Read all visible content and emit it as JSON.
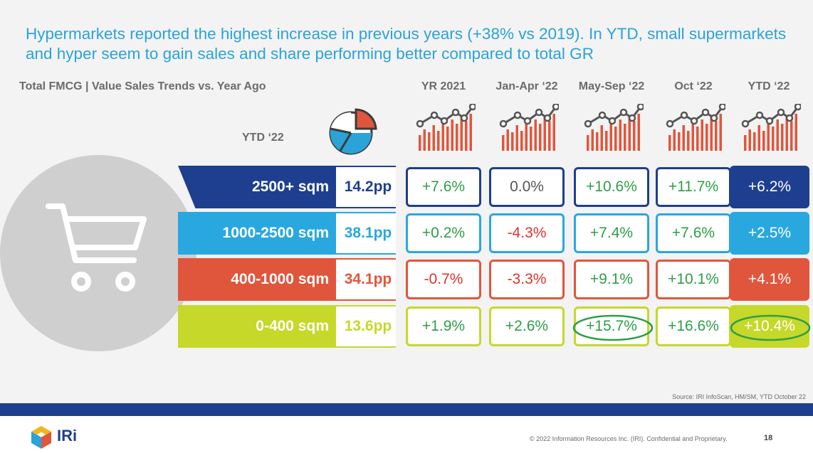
{
  "headline": "Hypermarkets reported the highest increase in previous years (+38% vs 2019). In YTD, small supermarkets and hyper seem to gain sales and share performing better compared to total GR",
  "subtitle": "Total FMCG | Value Sales Trends vs. Year Ago",
  "ytd_label": "YTD ‘22",
  "icons": {
    "share": "pie-chart-icon",
    "trend": "bar-trend-icon",
    "store": "shopping-cart-icon",
    "brand": "iri-cube-logo"
  },
  "colors": {
    "navy": "#1e3f8f",
    "sky": "#29a8e0",
    "orange": "#e0563c",
    "lime": "#c6d82a",
    "pos": "#2e9e48",
    "neg": "#e0332d"
  },
  "chart_data": {
    "type": "table",
    "title": "Total FMCG | Value Sales Trends vs. Year Ago",
    "columns": [
      "YR 2021",
      "Jan-Apr ‘22",
      "May-Sep ‘22",
      "Oct ‘22",
      "YTD ‘22"
    ],
    "rows": [
      {
        "segment": "2500+ sqm",
        "share_change": "14.2pp",
        "values": [
          "+7.6%",
          "0.0%",
          "+10.6%",
          "+11.7%",
          "+6.2%"
        ]
      },
      {
        "segment": "1000-2500 sqm",
        "share_change": "38.1pp",
        "values": [
          "+0.2%",
          "-4.3%",
          "+7.4%",
          "+7.6%",
          "+2.5%"
        ]
      },
      {
        "segment": "400-1000 sqm",
        "share_change": "34.1pp",
        "values": [
          "-0.7%",
          "-3.3%",
          "+9.1%",
          "+10.1%",
          "+4.1%"
        ]
      },
      {
        "segment": "0-400 sqm",
        "share_change": "13.6pp",
        "values": [
          "+1.9%",
          "+2.6%",
          "+15.7%",
          "+16.6%",
          "+10.4%"
        ]
      }
    ],
    "highlighted": [
      {
        "row": 3,
        "col": 2
      },
      {
        "row": 3,
        "col": 4
      }
    ]
  },
  "footer": {
    "source": "Source: IRI InfoScan, HM/SM, YTD October 22",
    "brand": "IRi",
    "copyright": "© 2022 Information Resources Inc. (IRI). Confidential and Proprietary.",
    "page": "18"
  }
}
